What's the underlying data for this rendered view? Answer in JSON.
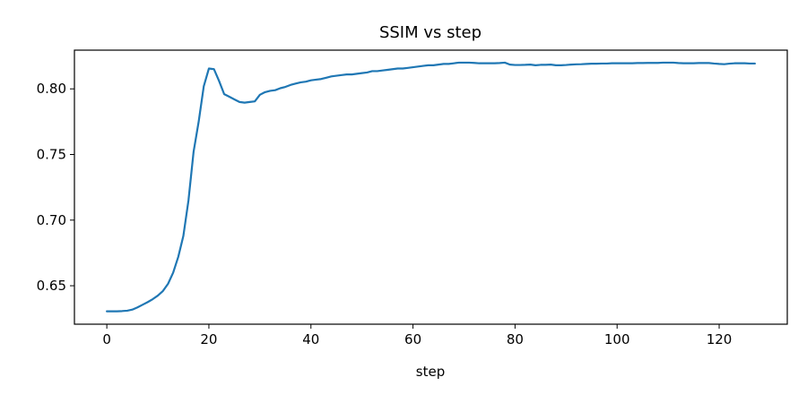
{
  "chart_data": {
    "type": "line",
    "title": "SSIM vs step",
    "xlabel": "step",
    "ylabel": "",
    "xlim": [
      -6.35,
      133.35
    ],
    "ylim": [
      0.6207,
      0.8295
    ],
    "xticks": [
      0,
      20,
      40,
      60,
      80,
      100,
      120
    ],
    "xtick_labels": [
      "0",
      "20",
      "40",
      "60",
      "80",
      "100",
      "120"
    ],
    "yticks": [
      0.65,
      0.7,
      0.75,
      0.8
    ],
    "ytick_labels": [
      "0.65",
      "0.70",
      "0.75",
      "0.80"
    ],
    "grid": false,
    "series": [
      {
        "color": "#1f77b4",
        "x": [
          0,
          1,
          2,
          3,
          4,
          5,
          6,
          7,
          8,
          9,
          10,
          11,
          12,
          13,
          14,
          15,
          16,
          17,
          18,
          19,
          20,
          21,
          22,
          23,
          24,
          25,
          26,
          27,
          28,
          29,
          30,
          31,
          32,
          33,
          34,
          35,
          36,
          37,
          38,
          39,
          40,
          41,
          42,
          43,
          44,
          45,
          46,
          47,
          48,
          49,
          50,
          51,
          52,
          53,
          54,
          55,
          56,
          57,
          58,
          59,
          60,
          61,
          62,
          63,
          64,
          65,
          66,
          67,
          68,
          69,
          70,
          71,
          72,
          73,
          74,
          75,
          76,
          77,
          78,
          79,
          80,
          81,
          82,
          83,
          84,
          85,
          86,
          87,
          88,
          89,
          90,
          91,
          92,
          93,
          94,
          95,
          96,
          97,
          98,
          99,
          100,
          101,
          102,
          103,
          104,
          105,
          106,
          107,
          108,
          109,
          110,
          111,
          112,
          113,
          114,
          115,
          116,
          117,
          118,
          119,
          120,
          121,
          122,
          123,
          124,
          125,
          126,
          127
        ],
        "y": [
          0.6305,
          0.6305,
          0.6305,
          0.6307,
          0.631,
          0.6318,
          0.6335,
          0.6355,
          0.6375,
          0.6398,
          0.6425,
          0.646,
          0.6515,
          0.66,
          0.672,
          0.688,
          0.715,
          0.752,
          0.775,
          0.802,
          0.8155,
          0.815,
          0.806,
          0.796,
          0.794,
          0.792,
          0.79,
          0.7895,
          0.79,
          0.7905,
          0.7955,
          0.7975,
          0.7985,
          0.799,
          0.8005,
          0.8015,
          0.803,
          0.804,
          0.805,
          0.8055,
          0.8065,
          0.807,
          0.8075,
          0.8085,
          0.8095,
          0.81,
          0.8105,
          0.811,
          0.811,
          0.8115,
          0.812,
          0.8125,
          0.8135,
          0.8135,
          0.814,
          0.8145,
          0.815,
          0.8155,
          0.8155,
          0.816,
          0.8165,
          0.817,
          0.8175,
          0.818,
          0.818,
          0.8185,
          0.819,
          0.819,
          0.8195,
          0.82,
          0.82,
          0.82,
          0.8198,
          0.8195,
          0.8195,
          0.8195,
          0.8195,
          0.8197,
          0.82,
          0.8185,
          0.8182,
          0.8182,
          0.8183,
          0.8185,
          0.818,
          0.8183,
          0.8183,
          0.8185,
          0.818,
          0.818,
          0.8182,
          0.8185,
          0.8187,
          0.8188,
          0.819,
          0.8192,
          0.8192,
          0.8193,
          0.8193,
          0.8195,
          0.8195,
          0.8195,
          0.8195,
          0.8195,
          0.8197,
          0.8197,
          0.8198,
          0.8198,
          0.8198,
          0.82,
          0.82,
          0.82,
          0.8197,
          0.8195,
          0.8195,
          0.8195,
          0.8197,
          0.8197,
          0.8197,
          0.8193,
          0.819,
          0.8188,
          0.8192,
          0.8195,
          0.8195,
          0.8195,
          0.8193,
          0.8193
        ]
      }
    ]
  }
}
